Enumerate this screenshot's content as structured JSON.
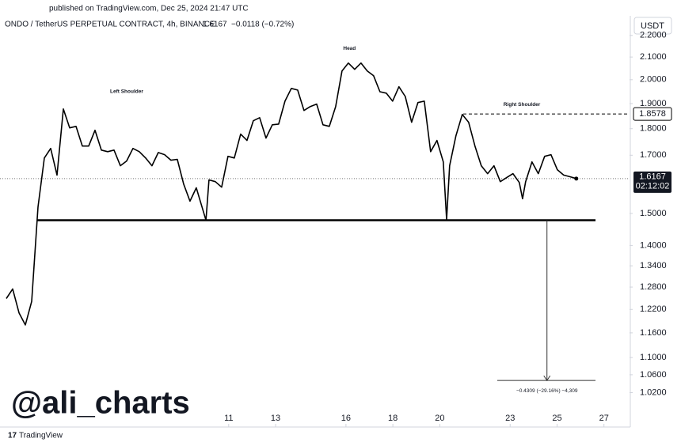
{
  "header": {
    "published": "published on TradingView.com, Dec 25, 2024 21:47 UTC",
    "symbol": "ONDO / TetherUS PERPETUAL CONTRACT, 4h, BINANCE",
    "change": "−0.0118 (−0.72%)",
    "currency": "USDT"
  },
  "watermark": "@ali_charts",
  "brand": "TradingView",
  "chart_data": {
    "type": "line",
    "x": [
      1.52,
      1.79,
      2.06,
      2.33,
      2.6,
      2.87,
      3.14,
      3.41,
      3.68,
      3.95,
      4.22,
      4.49,
      4.76,
      5.03,
      5.3,
      5.57,
      5.84,
      6.11,
      6.38,
      6.65,
      6.92,
      7.19,
      7.46,
      7.73,
      8.0,
      8.27,
      8.54,
      8.81,
      9.08,
      9.35,
      9.62,
      10.03,
      10.16,
      10.43,
      10.7,
      10.97,
      11.24,
      11.51,
      11.78,
      12.05,
      12.32,
      12.59,
      12.86,
      13.13,
      13.4,
      13.67,
      13.94,
      14.21,
      14.48,
      14.75,
      15.02,
      15.29,
      15.56,
      15.83,
      16.1,
      16.37,
      16.64,
      16.91,
      17.18,
      17.45,
      17.72,
      17.99,
      18.26,
      18.53,
      18.8,
      19.07,
      19.34,
      19.61,
      19.88,
      20.15,
      20.29,
      20.42,
      20.69,
      20.96,
      21.23,
      21.5,
      21.77,
      22.04,
      22.31,
      22.58,
      22.85,
      23.12,
      23.39,
      23.53,
      23.66,
      23.93,
      24.2,
      24.47,
      24.74,
      25.01,
      25.28,
      25.55,
      25.82
    ],
    "series": [
      {
        "name": "ONDO/USDT",
        "color": "#000000",
        "values": [
          1.249,
          1.275,
          1.211,
          1.18,
          1.241,
          1.521,
          1.69,
          1.725,
          1.629,
          1.878,
          1.803,
          1.809,
          1.734,
          1.734,
          1.794,
          1.719,
          1.713,
          1.719,
          1.662,
          1.679,
          1.725,
          1.713,
          1.69,
          1.662,
          1.71,
          1.702,
          1.682,
          1.685,
          1.598,
          1.54,
          1.585,
          1.478,
          1.612,
          1.606,
          1.587,
          1.696,
          1.69,
          1.779,
          1.755,
          1.831,
          1.843,
          1.764,
          1.815,
          1.818,
          1.91,
          1.963,
          1.956,
          1.872,
          1.888,
          1.898,
          1.815,
          1.809,
          1.888,
          2.038,
          2.073,
          2.045,
          2.073,
          2.038,
          2.017,
          1.949,
          1.943,
          1.91,
          1.97,
          1.929,
          1.825,
          1.904,
          1.91,
          1.713,
          1.755,
          1.676,
          1.48,
          1.662,
          1.773,
          1.856,
          1.825,
          1.734,
          1.662,
          1.634,
          1.662,
          1.606,
          1.62,
          1.634,
          1.603,
          1.548,
          1.606,
          1.676,
          1.634,
          1.696,
          1.702,
          1.648,
          1.629,
          1.623,
          1.6167
        ]
      }
    ],
    "xlim": [
      1.25,
      28.09
    ],
    "xticks": [
      11,
      13,
      16,
      18,
      20,
      23,
      25,
      27
    ],
    "ylim": [
      0.98,
      2.287
    ],
    "log_scale": true,
    "yticks": [
      {
        "value": 2.2,
        "label": "2.2000"
      },
      {
        "value": 2.1,
        "label": "2.1000"
      },
      {
        "value": 2.0,
        "label": "2.0000"
      },
      {
        "value": 1.9,
        "label": "1.9000"
      },
      {
        "value": 1.8,
        "label": "1.8000"
      },
      {
        "value": 1.7,
        "label": "1.7000"
      },
      {
        "value": 1.5,
        "label": "1.5000"
      },
      {
        "value": 1.4,
        "label": "1.4000"
      },
      {
        "value": 1.34,
        "label": "1.3400"
      },
      {
        "value": 1.28,
        "label": "1.2800"
      },
      {
        "value": 1.22,
        "label": "1.2200"
      },
      {
        "value": 1.16,
        "label": "1.1600"
      },
      {
        "value": 1.1,
        "label": "1.1000"
      },
      {
        "value": 1.06,
        "label": "1.0600"
      },
      {
        "value": 1.02,
        "label": "1.0200"
      }
    ],
    "price_labels": [
      1.6167,
      1.8578
    ],
    "countdown": "02:12:02",
    "neckline": 1.478,
    "target": 1.047,
    "annotations": [
      "Left Shoulder",
      "Head",
      "Right Shoulder"
    ],
    "measure_label": "−0.4309 (−29.16%) −4,309"
  }
}
